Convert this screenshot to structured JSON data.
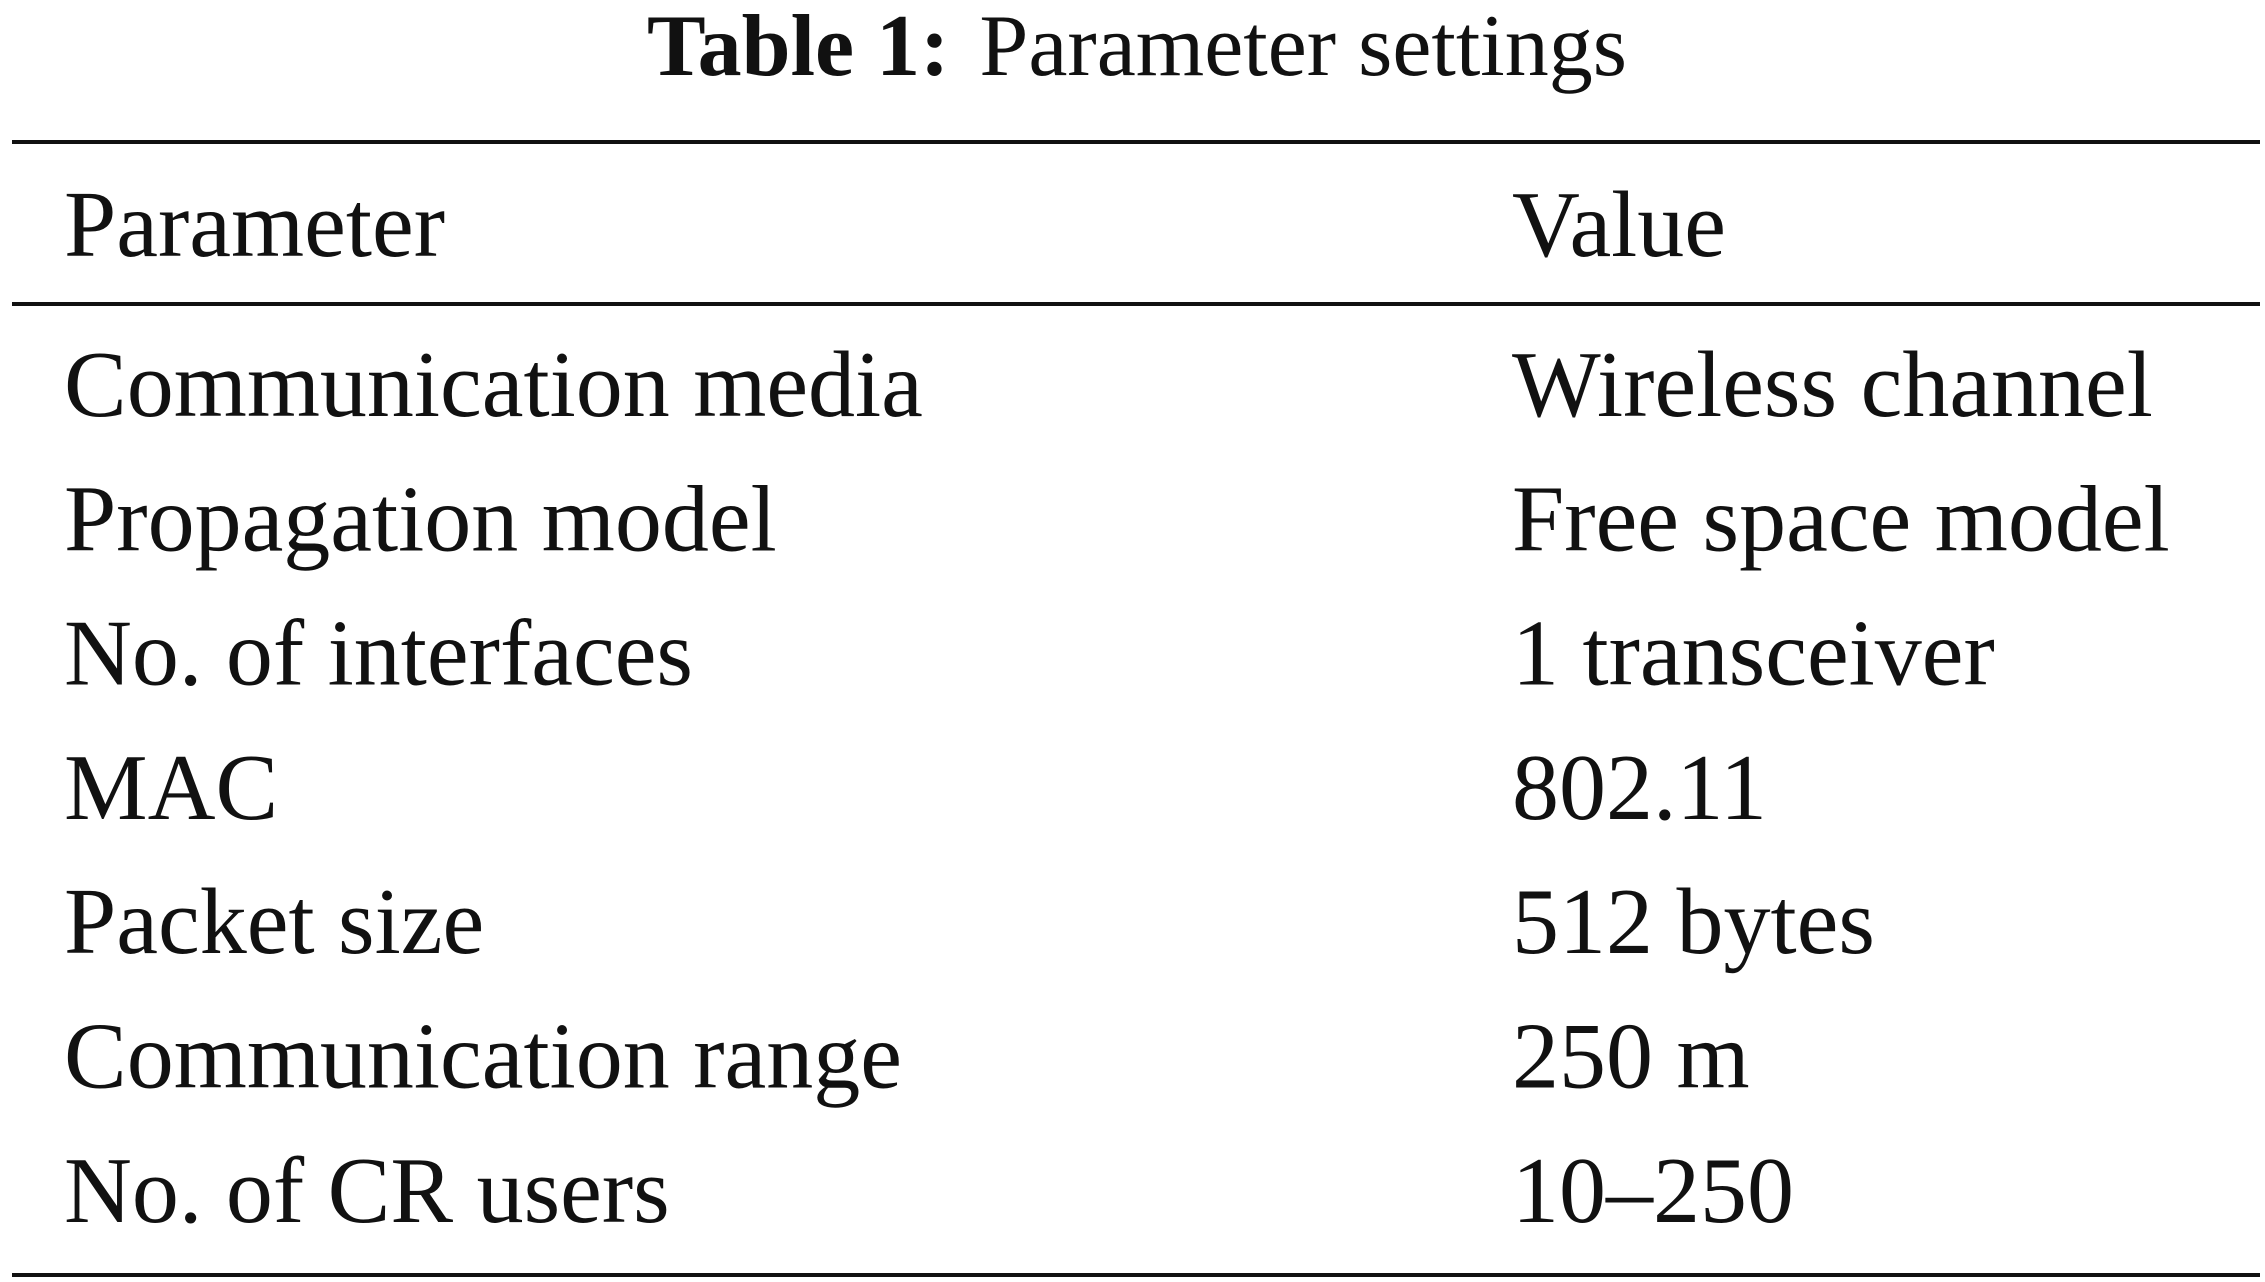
{
  "title": {
    "label": "Table 1:",
    "text": "Parameter settings"
  },
  "table": {
    "header": [
      "Parameter",
      "Value"
    ],
    "rows": [
      [
        "Communication media",
        "Wireless channel"
      ],
      [
        "Propagation model",
        "Free space model"
      ],
      [
        "No. of interfaces",
        "1 transceiver"
      ],
      [
        "MAC",
        "802.11"
      ],
      [
        "Packet size",
        "512 bytes"
      ],
      [
        "Communication range",
        "250 m"
      ],
      [
        "No. of CR users",
        "10–250"
      ]
    ]
  }
}
